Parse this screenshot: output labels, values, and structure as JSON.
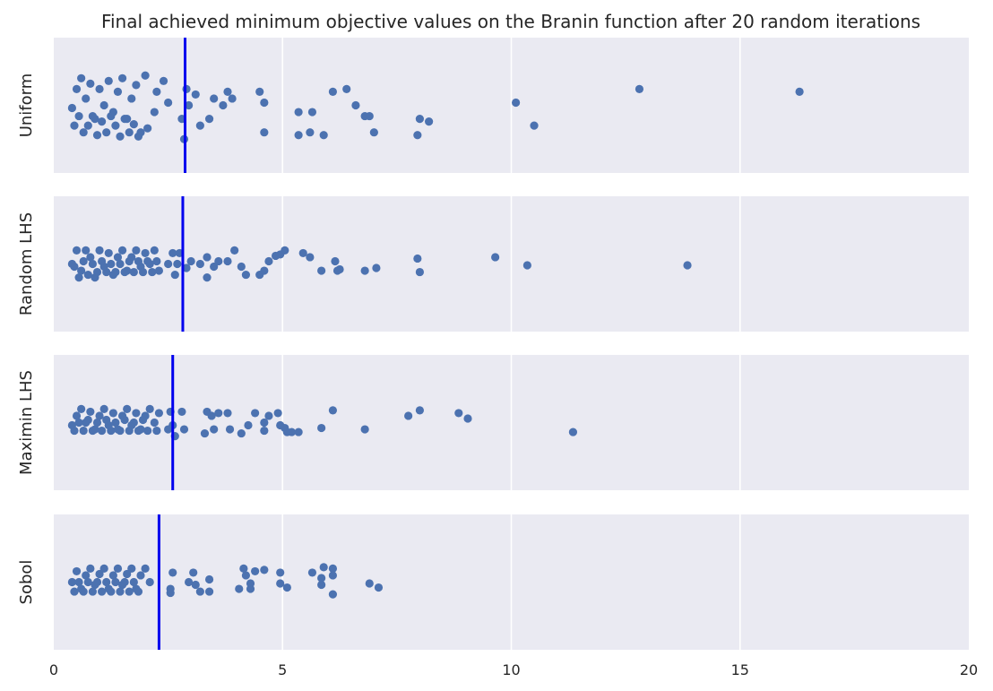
{
  "chart_data": {
    "type": "scatter",
    "title": "Final achieved minimum objective values on the Branin function after 20 random iterations",
    "xlim": [
      0,
      20
    ],
    "xticks": [
      0,
      5,
      10,
      15,
      20
    ],
    "grid": true,
    "background_color": "#EAEAF2",
    "point_color": "#4C72B0",
    "median_line_color": "#0000EE",
    "panels": [
      {
        "name": "Uniform",
        "median": 2.87,
        "points": [
          [
            0.4,
            0.48
          ],
          [
            0.5,
            0.62
          ],
          [
            0.6,
            0.7
          ],
          [
            0.7,
            0.55
          ],
          [
            0.8,
            0.66
          ],
          [
            0.9,
            0.4
          ],
          [
            1.0,
            0.62
          ],
          [
            1.1,
            0.5
          ],
          [
            1.2,
            0.68
          ],
          [
            1.3,
            0.45
          ],
          [
            1.4,
            0.6
          ],
          [
            1.5,
            0.7
          ],
          [
            1.6,
            0.4
          ],
          [
            1.7,
            0.55
          ],
          [
            1.8,
            0.65
          ],
          [
            1.9,
            0.3
          ],
          [
            2.0,
            0.72
          ],
          [
            2.2,
            0.45
          ],
          [
            2.4,
            0.68
          ],
          [
            2.5,
            0.52
          ],
          [
            0.45,
            0.35
          ],
          [
            0.55,
            0.42
          ],
          [
            0.65,
            0.3
          ],
          [
            0.75,
            0.35
          ],
          [
            0.85,
            0.42
          ],
          [
            0.95,
            0.28
          ],
          [
            1.05,
            0.38
          ],
          [
            1.15,
            0.3
          ],
          [
            1.25,
            0.42
          ],
          [
            1.35,
            0.35
          ],
          [
            1.45,
            0.27
          ],
          [
            1.55,
            0.4
          ],
          [
            1.65,
            0.3
          ],
          [
            1.75,
            0.36
          ],
          [
            1.85,
            0.27
          ],
          [
            2.05,
            0.33
          ],
          [
            2.25,
            0.6
          ],
          [
            2.8,
            0.4
          ],
          [
            2.85,
            0.25
          ],
          [
            2.9,
            0.62
          ],
          [
            2.95,
            0.5
          ],
          [
            3.1,
            0.58
          ],
          [
            3.2,
            0.35
          ],
          [
            3.4,
            0.4
          ],
          [
            3.5,
            0.55
          ],
          [
            3.7,
            0.5
          ],
          [
            3.8,
            0.6
          ],
          [
            3.9,
            0.55
          ],
          [
            4.5,
            0.6
          ],
          [
            4.6,
            0.52
          ],
          [
            4.6,
            0.3
          ],
          [
            5.35,
            0.45
          ],
          [
            5.35,
            0.28
          ],
          [
            5.6,
            0.3
          ],
          [
            5.65,
            0.45
          ],
          [
            5.9,
            0.28
          ],
          [
            6.1,
            0.6
          ],
          [
            6.4,
            0.62
          ],
          [
            6.6,
            0.5
          ],
          [
            6.8,
            0.42
          ],
          [
            6.9,
            0.42
          ],
          [
            7.0,
            0.3
          ],
          [
            7.95,
            0.28
          ],
          [
            8.0,
            0.4
          ],
          [
            8.2,
            0.38
          ],
          [
            10.1,
            0.52
          ],
          [
            10.5,
            0.35
          ],
          [
            12.8,
            0.62
          ],
          [
            16.3,
            0.6
          ]
        ]
      },
      {
        "name": "Random LHS",
        "median": 2.82,
        "points": [
          [
            0.4,
            0.5
          ],
          [
            0.5,
            0.6
          ],
          [
            0.6,
            0.45
          ],
          [
            0.7,
            0.6
          ],
          [
            0.8,
            0.55
          ],
          [
            0.9,
            0.4
          ],
          [
            1.0,
            0.6
          ],
          [
            1.1,
            0.48
          ],
          [
            1.2,
            0.58
          ],
          [
            1.3,
            0.42
          ],
          [
            1.4,
            0.55
          ],
          [
            1.5,
            0.6
          ],
          [
            1.6,
            0.45
          ],
          [
            1.7,
            0.55
          ],
          [
            1.8,
            0.6
          ],
          [
            1.9,
            0.48
          ],
          [
            2.0,
            0.58
          ],
          [
            2.1,
            0.5
          ],
          [
            2.2,
            0.6
          ],
          [
            2.3,
            0.45
          ],
          [
            0.45,
            0.48
          ],
          [
            0.55,
            0.4
          ],
          [
            0.65,
            0.52
          ],
          [
            0.75,
            0.42
          ],
          [
            0.85,
            0.5
          ],
          [
            0.95,
            0.44
          ],
          [
            1.05,
            0.52
          ],
          [
            1.15,
            0.44
          ],
          [
            1.25,
            0.5
          ],
          [
            1.35,
            0.44
          ],
          [
            1.45,
            0.5
          ],
          [
            1.55,
            0.44
          ],
          [
            1.65,
            0.52
          ],
          [
            1.75,
            0.44
          ],
          [
            1.85,
            0.52
          ],
          [
            1.95,
            0.44
          ],
          [
            2.05,
            0.52
          ],
          [
            2.15,
            0.44
          ],
          [
            2.25,
            0.52
          ],
          [
            2.5,
            0.5
          ],
          [
            2.6,
            0.58
          ],
          [
            2.65,
            0.42
          ],
          [
            2.7,
            0.5
          ],
          [
            2.75,
            0.58
          ],
          [
            2.9,
            0.47
          ],
          [
            3.0,
            0.52
          ],
          [
            3.2,
            0.5
          ],
          [
            3.35,
            0.4
          ],
          [
            3.35,
            0.55
          ],
          [
            3.5,
            0.48
          ],
          [
            3.6,
            0.52
          ],
          [
            3.8,
            0.52
          ],
          [
            3.95,
            0.6
          ],
          [
            4.1,
            0.48
          ],
          [
            4.2,
            0.42
          ],
          [
            4.5,
            0.42
          ],
          [
            4.6,
            0.45
          ],
          [
            4.7,
            0.52
          ],
          [
            4.85,
            0.56
          ],
          [
            4.95,
            0.57
          ],
          [
            5.05,
            0.6
          ],
          [
            5.45,
            0.58
          ],
          [
            5.6,
            0.55
          ],
          [
            5.85,
            0.45
          ],
          [
            6.15,
            0.52
          ],
          [
            6.2,
            0.45
          ],
          [
            6.25,
            0.46
          ],
          [
            6.8,
            0.45
          ],
          [
            7.05,
            0.47
          ],
          [
            7.95,
            0.54
          ],
          [
            8.0,
            0.44
          ],
          [
            9.65,
            0.55
          ],
          [
            10.35,
            0.49
          ],
          [
            13.85,
            0.49
          ]
        ]
      },
      {
        "name": "Maximin LHS",
        "median": 2.6,
        "points": [
          [
            0.4,
            0.48
          ],
          [
            0.5,
            0.55
          ],
          [
            0.6,
            0.6
          ],
          [
            0.7,
            0.5
          ],
          [
            0.8,
            0.58
          ],
          [
            0.9,
            0.45
          ],
          [
            1.0,
            0.55
          ],
          [
            1.1,
            0.6
          ],
          [
            1.2,
            0.48
          ],
          [
            1.3,
            0.57
          ],
          [
            1.4,
            0.45
          ],
          [
            1.5,
            0.55
          ],
          [
            1.6,
            0.6
          ],
          [
            1.7,
            0.48
          ],
          [
            1.8,
            0.57
          ],
          [
            1.9,
            0.45
          ],
          [
            2.0,
            0.55
          ],
          [
            2.1,
            0.6
          ],
          [
            2.2,
            0.5
          ],
          [
            2.3,
            0.57
          ],
          [
            0.45,
            0.44
          ],
          [
            0.55,
            0.5
          ],
          [
            0.65,
            0.44
          ],
          [
            0.75,
            0.52
          ],
          [
            0.85,
            0.44
          ],
          [
            0.95,
            0.5
          ],
          [
            1.05,
            0.44
          ],
          [
            1.15,
            0.52
          ],
          [
            1.25,
            0.44
          ],
          [
            1.35,
            0.5
          ],
          [
            1.45,
            0.44
          ],
          [
            1.55,
            0.52
          ],
          [
            1.65,
            0.44
          ],
          [
            1.75,
            0.5
          ],
          [
            1.85,
            0.44
          ],
          [
            1.95,
            0.52
          ],
          [
            2.05,
            0.44
          ],
          [
            2.25,
            0.44
          ],
          [
            2.5,
            0.45
          ],
          [
            2.55,
            0.58
          ],
          [
            2.6,
            0.48
          ],
          [
            2.65,
            0.4
          ],
          [
            2.8,
            0.58
          ],
          [
            2.85,
            0.45
          ],
          [
            3.3,
            0.42
          ],
          [
            3.35,
            0.58
          ],
          [
            3.45,
            0.55
          ],
          [
            3.5,
            0.45
          ],
          [
            3.6,
            0.57
          ],
          [
            3.8,
            0.57
          ],
          [
            3.85,
            0.45
          ],
          [
            4.1,
            0.42
          ],
          [
            4.25,
            0.48
          ],
          [
            4.4,
            0.57
          ],
          [
            4.6,
            0.5
          ],
          [
            4.6,
            0.44
          ],
          [
            4.7,
            0.55
          ],
          [
            4.9,
            0.57
          ],
          [
            4.95,
            0.48
          ],
          [
            5.05,
            0.46
          ],
          [
            5.1,
            0.43
          ],
          [
            5.2,
            0.43
          ],
          [
            5.35,
            0.43
          ],
          [
            5.85,
            0.46
          ],
          [
            6.1,
            0.59
          ],
          [
            6.8,
            0.45
          ],
          [
            7.75,
            0.55
          ],
          [
            8.0,
            0.59
          ],
          [
            8.85,
            0.57
          ],
          [
            9.05,
            0.53
          ],
          [
            11.35,
            0.43
          ]
        ]
      },
      {
        "name": "Sobol",
        "median": 2.3,
        "points": [
          [
            0.4,
            0.5
          ],
          [
            0.5,
            0.58
          ],
          [
            0.6,
            0.45
          ],
          [
            0.7,
            0.55
          ],
          [
            0.8,
            0.6
          ],
          [
            0.9,
            0.48
          ],
          [
            1.0,
            0.56
          ],
          [
            1.1,
            0.6
          ],
          [
            1.2,
            0.45
          ],
          [
            1.3,
            0.55
          ],
          [
            1.4,
            0.6
          ],
          [
            1.5,
            0.48
          ],
          [
            1.6,
            0.56
          ],
          [
            1.7,
            0.6
          ],
          [
            1.8,
            0.45
          ],
          [
            1.9,
            0.55
          ],
          [
            2.0,
            0.6
          ],
          [
            2.1,
            0.5
          ],
          [
            0.45,
            0.43
          ],
          [
            0.55,
            0.5
          ],
          [
            0.65,
            0.43
          ],
          [
            0.75,
            0.5
          ],
          [
            0.85,
            0.43
          ],
          [
            0.95,
            0.5
          ],
          [
            1.05,
            0.43
          ],
          [
            1.15,
            0.5
          ],
          [
            1.25,
            0.43
          ],
          [
            1.35,
            0.5
          ],
          [
            1.45,
            0.43
          ],
          [
            1.55,
            0.5
          ],
          [
            1.65,
            0.43
          ],
          [
            1.75,
            0.5
          ],
          [
            1.85,
            0.43
          ],
          [
            2.55,
            0.42
          ],
          [
            2.55,
            0.45
          ],
          [
            2.6,
            0.57
          ],
          [
            2.95,
            0.5
          ],
          [
            3.05,
            0.57
          ],
          [
            3.1,
            0.48
          ],
          [
            3.2,
            0.43
          ],
          [
            3.4,
            0.52
          ],
          [
            3.4,
            0.43
          ],
          [
            4.05,
            0.45
          ],
          [
            4.15,
            0.6
          ],
          [
            4.2,
            0.55
          ],
          [
            4.3,
            0.49
          ],
          [
            4.3,
            0.45
          ],
          [
            4.4,
            0.58
          ],
          [
            4.6,
            0.59
          ],
          [
            4.95,
            0.57
          ],
          [
            4.95,
            0.49
          ],
          [
            5.1,
            0.46
          ],
          [
            5.65,
            0.57
          ],
          [
            5.85,
            0.53
          ],
          [
            5.85,
            0.48
          ],
          [
            5.9,
            0.61
          ],
          [
            6.1,
            0.6
          ],
          [
            6.1,
            0.55
          ],
          [
            6.1,
            0.41
          ],
          [
            6.9,
            0.49
          ],
          [
            7.1,
            0.46
          ]
        ]
      }
    ]
  }
}
